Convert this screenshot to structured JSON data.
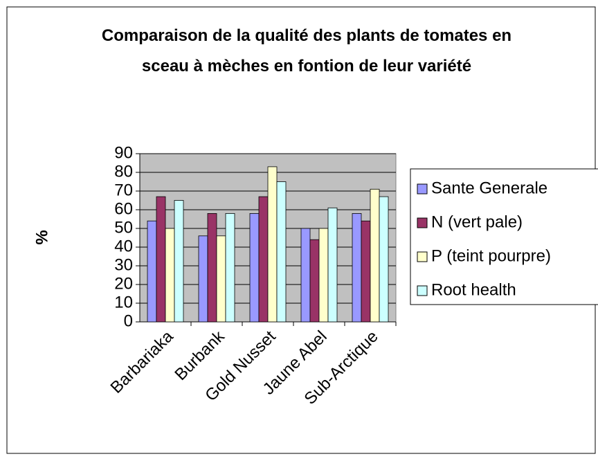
{
  "chart_data": {
    "type": "bar",
    "title": "Comparaison de la qualité des plants de tomates en sceau à mèches en fontion de leur variété",
    "y_label": "%",
    "categories": [
      "Barbariaka",
      "Burbank",
      "Gold Nusset",
      "Jaune Abel",
      "Sub-Arctique"
    ],
    "series": [
      {
        "name": "Sante Generale",
        "color": "#9999ff",
        "values": [
          54,
          46,
          58,
          50,
          58
        ]
      },
      {
        "name": "N (vert pale)",
        "color": "#993366",
        "values": [
          67,
          58,
          67,
          44,
          54
        ]
      },
      {
        "name": "P (teint pourpre)",
        "color": "#ffffcc",
        "values": [
          50,
          46,
          83,
          50,
          71
        ]
      },
      {
        "name": "Root health",
        "color": "#ccffff",
        "values": [
          65,
          58,
          75,
          61,
          67
        ]
      }
    ],
    "ylim": [
      0,
      90
    ],
    "yticks": [
      0,
      10,
      20,
      30,
      40,
      50,
      60,
      70,
      80,
      90
    ],
    "grid": true,
    "legend": "right",
    "plot_background": "#c0c0c0"
  }
}
